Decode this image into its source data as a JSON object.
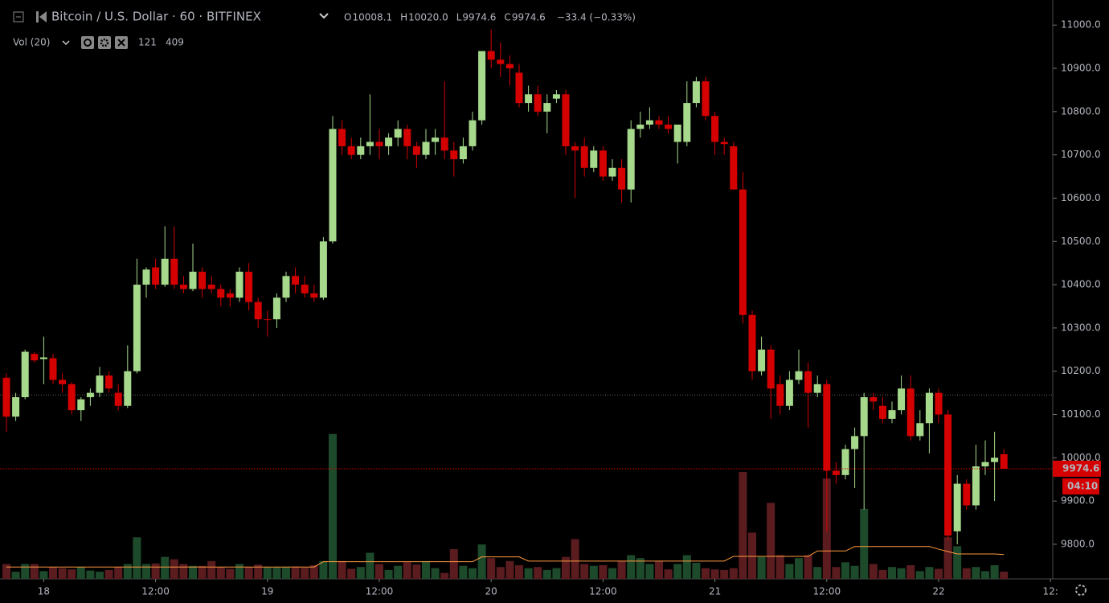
{
  "chart_data": {
    "type": "candlestick",
    "title": "Bitcoin / U.S. Dollar · 60 · BITFINEX",
    "quote": [
      {
        "key": "O",
        "text": "10008.1"
      },
      {
        "key": "H",
        "text": "10020.0"
      },
      {
        "key": "L",
        "text": "9974.6"
      },
      {
        "key": "C",
        "text": "9974.6"
      }
    ],
    "change": "−33.4 (−0.33%)",
    "volume_title": "Vol (20)",
    "volume_last": 121,
    "volume_ma_last": 409,
    "last_price": 9974.6,
    "countdown": "04:10",
    "reference_line": 10145,
    "up_color": "#a6d98b",
    "down_color": "#d50000",
    "volume_up_color": "#1e4a2c",
    "volume_down_color": "#5b1c20",
    "ma_color": "#ff9a3c",
    "grid": false,
    "ylim": [
      9720,
      11058
    ],
    "volume_ylim": [
      0,
      9750
    ],
    "yticks": [
      {
        "value": 9800,
        "label": "9800.0"
      },
      {
        "value": 9900,
        "label": "9900.0"
      },
      {
        "value": 10000,
        "label": "10000.0"
      },
      {
        "value": 10100,
        "label": "10100.0"
      },
      {
        "value": 10200,
        "label": "10200.0"
      },
      {
        "value": 10300,
        "label": "10300.0"
      },
      {
        "value": 10400,
        "label": "10400.0"
      },
      {
        "value": 10500,
        "label": "10500.0"
      },
      {
        "value": 10600,
        "label": "10600.0"
      },
      {
        "value": 10700,
        "label": "10700.0"
      },
      {
        "value": 10800,
        "label": "10800.0"
      },
      {
        "value": 10900,
        "label": "10900.0"
      },
      {
        "value": 11000,
        "label": "11000.0"
      }
    ],
    "categories": [
      null,
      null,
      null,
      null,
      "18",
      null,
      null,
      null,
      null,
      null,
      null,
      null,
      null,
      null,
      null,
      null,
      "12:00",
      null,
      null,
      null,
      null,
      null,
      null,
      null,
      null,
      null,
      null,
      null,
      "19",
      null,
      null,
      null,
      null,
      null,
      null,
      null,
      null,
      null,
      null,
      null,
      "12:00",
      null,
      null,
      null,
      null,
      null,
      null,
      null,
      null,
      null,
      null,
      null,
      "20",
      null,
      null,
      null,
      null,
      null,
      null,
      null,
      null,
      null,
      null,
      null,
      "12:00",
      null,
      null,
      null,
      null,
      null,
      null,
      null,
      null,
      null,
      null,
      null,
      "21",
      null,
      null,
      null,
      null,
      null,
      null,
      null,
      null,
      null,
      null,
      null,
      "12:00",
      null,
      null,
      null,
      null,
      null,
      null,
      null,
      null,
      null,
      null,
      null,
      "22",
      null,
      null,
      null,
      null,
      null,
      null,
      null,
      null,
      null,
      null,
      null,
      "12:"
    ],
    "open": [
      10185,
      10095,
      10140,
      10240,
      10228,
      10230,
      10180,
      10170,
      10110,
      10140,
      10150,
      10190,
      10150,
      10120,
      10200,
      10400,
      10440,
      10400,
      10460,
      10400,
      10390,
      10430,
      10400,
      10390,
      10380,
      10370,
      10430,
      10360,
      10320,
      10320,
      10370,
      10420,
      10400,
      10380,
      10370,
      10500,
      10760,
      10720,
      10700,
      10720,
      10730,
      10720,
      10740,
      10760,
      10720,
      10700,
      10730,
      10740,
      10710,
      10690,
      10720,
      10780,
      10940,
      10920,
      10910,
      10890,
      10820,
      10840,
      10800,
      10830,
      10840,
      10720,
      10720,
      10670,
      10710,
      10650,
      10670,
      10620,
      10760,
      10770,
      10780,
      10770,
      10730,
      10730,
      10820,
      10870,
      10790,
      10730,
      10720,
      10620,
      10330,
      10200,
      10250,
      10170,
      10120,
      10180,
      10200,
      10150,
      10170,
      9970,
      9960,
      10020,
      10050,
      10140,
      10120,
      10090,
      10110,
      10160,
      10050,
      10080,
      10150,
      10100,
      9830,
      9940,
      9890,
      9980,
      9990,
      10008.1,
      null,
      null,
      null,
      null,
      null
    ],
    "high": [
      10195,
      10150,
      10250,
      10245,
      10280,
      10240,
      10195,
      10175,
      10140,
      10160,
      10210,
      10200,
      10170,
      10260,
      10460,
      10440,
      10460,
      10535,
      10535,
      10420,
      10495,
      10440,
      10420,
      10400,
      10390,
      10440,
      10450,
      10370,
      10340,
      10380,
      10430,
      10440,
      10420,
      10400,
      10510,
      10790,
      10780,
      10740,
      10740,
      10840,
      10760,
      10750,
      10780,
      10770,
      10730,
      10760,
      10760,
      10870,
      10730,
      10740,
      10800,
      10940,
      10990,
      10960,
      10930,
      10910,
      10860,
      10860,
      10840,
      10850,
      10850,
      10730,
      10740,
      10720,
      10720,
      10690,
      10690,
      10780,
      10800,
      10810,
      10790,
      10790,
      10770,
      10870,
      10880,
      10880,
      10800,
      10740,
      10730,
      10660,
      10340,
      10280,
      10260,
      10190,
      10200,
      10250,
      10220,
      10190,
      10180,
      9990,
      10030,
      10070,
      10150,
      10150,
      10140,
      10130,
      10190,
      10190,
      10110,
      10160,
      10160,
      10110,
      9960,
      9950,
      10030,
      10040,
      10060,
      10020,
      null,
      null,
      null,
      null,
      null
    ],
    "low": [
      10060,
      10085,
      10135,
      10220,
      10170,
      10170,
      10150,
      10100,
      10085,
      10120,
      10140,
      10150,
      10110,
      10115,
      10195,
      10370,
      10390,
      10395,
      10390,
      10380,
      10385,
      10370,
      10380,
      10350,
      10350,
      10360,
      10340,
      10300,
      10280,
      10300,
      10360,
      10380,
      10370,
      10360,
      10365,
      10495,
      10700,
      10690,
      10690,
      10700,
      10690,
      10700,
      10720,
      10690,
      10670,
      10690,
      10700,
      10690,
      10650,
      10680,
      10710,
      10770,
      10900,
      10880,
      10860,
      10810,
      10800,
      10790,
      10750,
      10820,
      10700,
      10600,
      10650,
      10660,
      10640,
      10640,
      10590,
      10590,
      10740,
      10760,
      10760,
      10750,
      10680,
      10720,
      10810,
      10780,
      10700,
      10700,
      10620,
      10310,
      10180,
      10190,
      10090,
      10100,
      10110,
      10170,
      10070,
      10140,
      9830,
      9940,
      9950,
      9930,
      9880,
      10110,
      10080,
      10080,
      10100,
      10040,
      10040,
      10010,
      10080,
      9810,
      9800,
      9880,
      9880,
      9960,
      9900,
      9974.6,
      null,
      null,
      null,
      null,
      null
    ],
    "close": [
      10095,
      10140,
      10245,
      10225,
      10232,
      10180,
      10170,
      10110,
      10135,
      10150,
      10190,
      10160,
      10120,
      10200,
      10400,
      10435,
      10400,
      10460,
      10400,
      10390,
      10430,
      10390,
      10390,
      10370,
      10370,
      10430,
      10360,
      10320,
      10320,
      10370,
      10420,
      10400,
      10380,
      10370,
      10500,
      10760,
      10720,
      10700,
      10720,
      10730,
      10720,
      10740,
      10760,
      10720,
      10700,
      10730,
      10740,
      10710,
      10690,
      10720,
      10780,
      10940,
      10920,
      10910,
      10900,
      10820,
      10840,
      10800,
      10820,
      10840,
      10720,
      10710,
      10670,
      10710,
      10650,
      10670,
      10620,
      10760,
      10770,
      10780,
      10770,
      10760,
      10770,
      10820,
      10870,
      10790,
      10730,
      10725,
      10620,
      10330,
      10200,
      10250,
      10160,
      10120,
      10180,
      10200,
      10150,
      10170,
      9970,
      9960,
      10020,
      10050,
      10140,
      10130,
      10090,
      10110,
      10160,
      10050,
      10080,
      10150,
      10100,
      9820,
      9940,
      9890,
      9980,
      9990,
      10000,
      9974.6,
      null,
      null,
      null,
      null,
      null
    ],
    "volume": [
      250,
      120,
      250,
      250,
      130,
      200,
      180,
      160,
      200,
      140,
      120,
      150,
      200,
      250,
      700,
      250,
      260,
      370,
      330,
      250,
      220,
      220,
      300,
      200,
      170,
      250,
      200,
      240,
      200,
      200,
      200,
      210,
      190,
      230,
      300,
      2440,
      300,
      170,
      200,
      440,
      250,
      150,
      220,
      280,
      240,
      300,
      180,
      100,
      500,
      220,
      180,
      580,
      350,
      200,
      300,
      230,
      180,
      200,
      150,
      180,
      370,
      670,
      250,
      220,
      230,
      180,
      300,
      400,
      350,
      250,
      300,
      160,
      250,
      400,
      270,
      180,
      160,
      150,
      180,
      1800,
      780,
      370,
      1280,
      400,
      250,
      350,
      400,
      200,
      1690,
      200,
      280,
      220,
      1180,
      250,
      150,
      200,
      180,
      230,
      130,
      200,
      170,
      700,
      550,
      180,
      200,
      130,
      230,
      121,
      null,
      null,
      null,
      null,
      null
    ],
    "volume_ma": [
      200,
      200,
      200,
      200,
      200,
      200,
      200,
      200,
      200,
      200,
      200,
      200,
      200,
      200,
      200,
      200,
      200,
      200,
      200,
      200,
      200,
      200,
      200,
      200,
      200,
      200,
      200,
      200,
      200,
      200,
      200,
      200,
      200,
      200,
      290,
      290,
      290,
      290,
      290,
      290,
      290,
      290,
      290,
      290,
      290,
      290,
      290,
      290,
      290,
      290,
      290,
      370,
      370,
      370,
      370,
      370,
      300,
      300,
      300,
      300,
      300,
      300,
      300,
      300,
      300,
      300,
      300,
      300,
      300,
      300,
      300,
      300,
      300,
      300,
      300,
      300,
      300,
      300,
      380,
      380,
      380,
      380,
      380,
      380,
      380,
      380,
      380,
      470,
      470,
      470,
      470,
      545,
      545,
      545,
      545,
      545,
      545,
      545,
      545,
      545,
      500,
      460,
      420,
      420,
      420,
      420,
      420,
      409,
      null,
      null,
      null,
      null,
      null
    ]
  }
}
